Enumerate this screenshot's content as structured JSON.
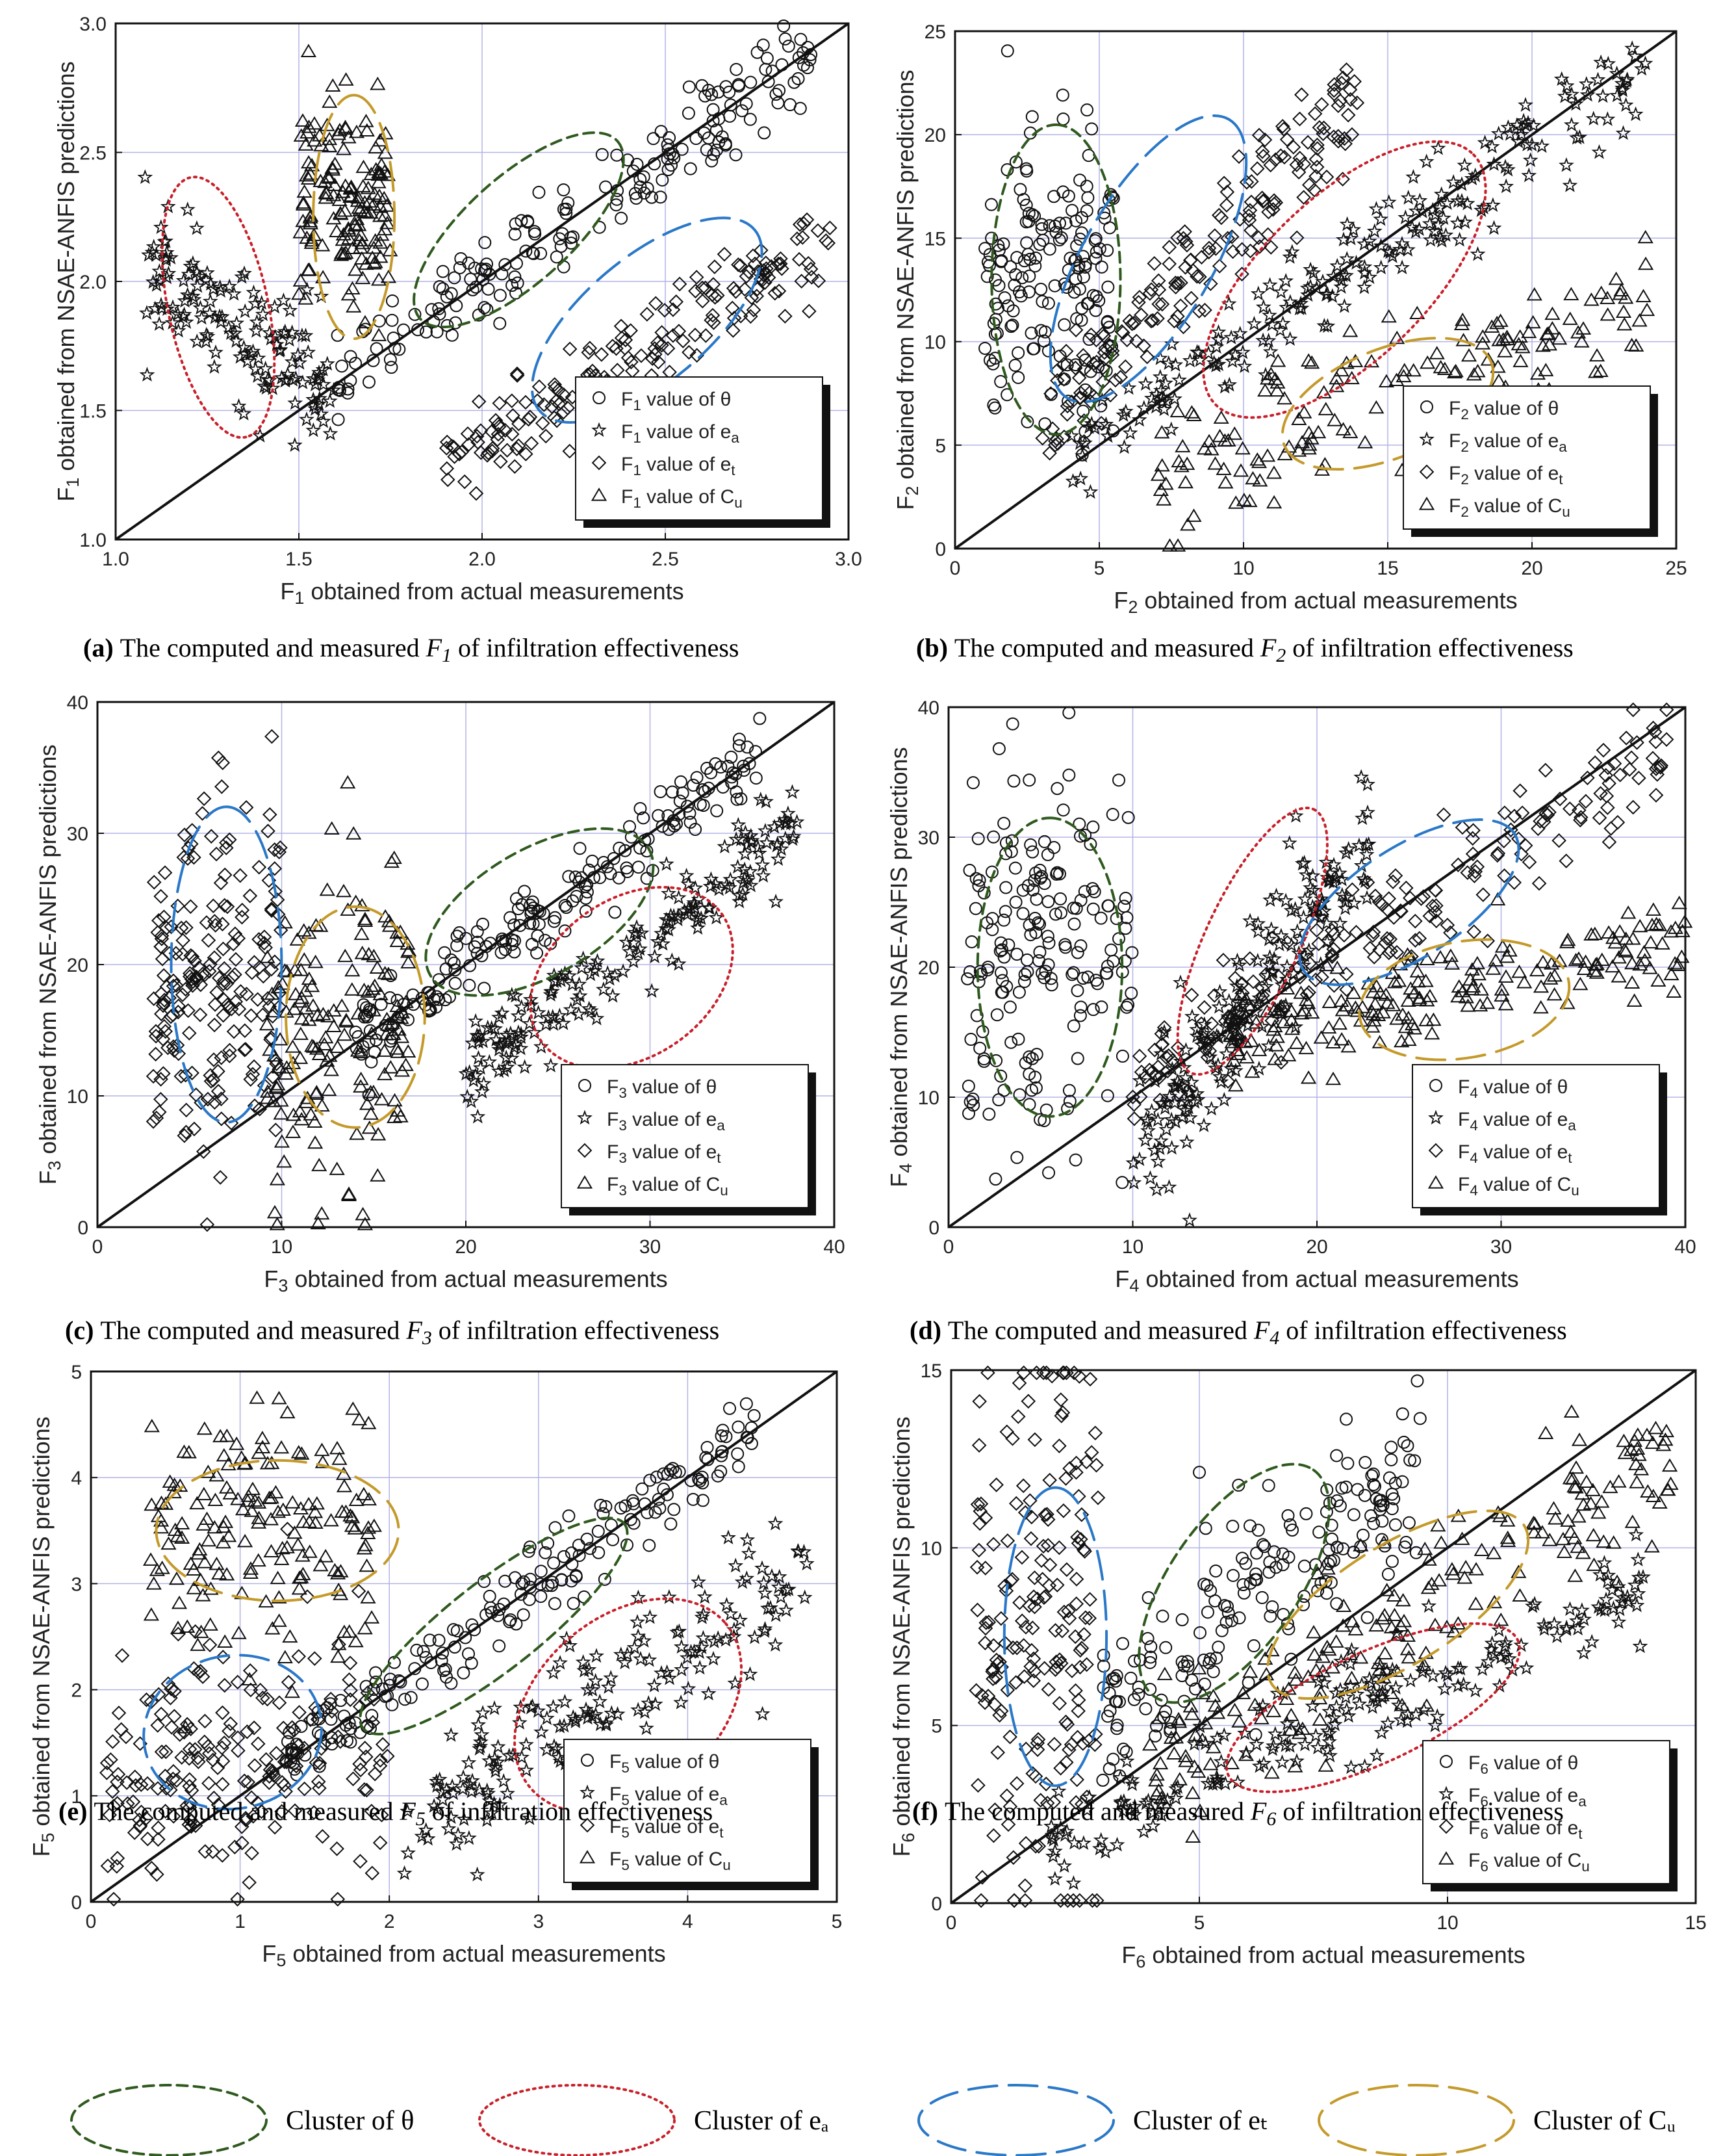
{
  "cluster_legend": [
    {
      "label": "Cluster of θ",
      "color": "#2f5a1e",
      "style": "short-dash"
    },
    {
      "label": "Cluster of eₐ",
      "color": "#c8202a",
      "style": "dotted"
    },
    {
      "label": "Cluster of eₜ",
      "color": "#2a78c8",
      "style": "long-dash"
    },
    {
      "label": "Cluster of Cᵤ",
      "color": "#c49a2a",
      "style": "long-dash"
    }
  ],
  "chart_data": [
    {
      "id": "a",
      "type": "scatter",
      "caption_letter": "(a)",
      "caption_text": "The computed and measured F1 of infiltration effectiveness",
      "xlabel": "F1 obtained from actual measurements",
      "ylabel": "F1 obtained from NSAE-ANFIS predictions",
      "xlim": [
        1.0,
        3.0
      ],
      "ylim": [
        1.0,
        3.0
      ],
      "xticks": [
        "1.0",
        "1.5",
        "2.0",
        "2.5",
        "3.0"
      ],
      "yticks": [
        "1.0",
        "1.5",
        "2.0",
        "2.5",
        "3.0"
      ],
      "legend": [
        "F1 value of θ",
        "F1 value of ea",
        "F1 value of et",
        "F1 value of Cu"
      ],
      "clusters": [
        {
          "type": "theta",
          "cx": 2.1,
          "cy": 2.2,
          "rx": 0.85,
          "ry": 0.17,
          "angle_deg": 42
        },
        {
          "type": "ea",
          "cx": 1.28,
          "cy": 1.9,
          "rx": 0.85,
          "ry": 0.16,
          "angle_deg": -78
        },
        {
          "type": "et",
          "cx": 2.45,
          "cy": 1.85,
          "rx": 0.9,
          "ry": 0.2,
          "angle_deg": 40
        },
        {
          "type": "cu",
          "cx": 1.65,
          "cy": 2.25,
          "rx": 0.78,
          "ry": 0.13,
          "angle_deg": 90
        }
      ],
      "series": [
        {
          "name": "theta",
          "count": 190,
          "x_range": [
            1.6,
            2.9
          ],
          "trend": [
            1.0,
            0.0
          ],
          "spread": 0.25
        },
        {
          "name": "ea",
          "count": 150,
          "x_range": [
            1.08,
            1.6
          ],
          "trend": [
            -1.0,
            3.15
          ],
          "spread": 0.35
        },
        {
          "name": "et",
          "count": 190,
          "x_range": [
            1.9,
            2.95
          ],
          "trend": [
            0.85,
            -0.35
          ],
          "spread": 0.25
        },
        {
          "name": "cu",
          "count": 150,
          "x_range": [
            1.5,
            1.75
          ],
          "trend": [
            0.0,
            2.3
          ],
          "spread": 0.55
        }
      ]
    },
    {
      "id": "b",
      "type": "scatter",
      "caption_letter": "(b)",
      "caption_text": "The computed and measured F2 of infiltration effectiveness",
      "xlabel": "F2 obtained from actual measurements",
      "ylabel": "F2 obtained from NSAE-ANFIS predictions",
      "xlim": [
        0,
        25
      ],
      "ylim": [
        0,
        25
      ],
      "xticks": [
        "0",
        "5",
        "10",
        "15",
        "20",
        "25"
      ],
      "yticks": [
        "0",
        "5",
        "10",
        "15",
        "20",
        "25"
      ],
      "legend": [
        "F2 value of θ",
        "F2 value of ea",
        "F2 value of et",
        "F2 value of Cu"
      ],
      "clusters": [
        {
          "type": "theta",
          "cx": 3.5,
          "cy": 13,
          "rx": 12.5,
          "ry": 2.6,
          "angle_deg": 90
        },
        {
          "type": "ea",
          "cx": 13.5,
          "cy": 13,
          "rx": 14.5,
          "ry": 3.3,
          "angle_deg": 44
        },
        {
          "type": "et",
          "cx": 6.7,
          "cy": 14,
          "rx": 13,
          "ry": 2.6,
          "angle_deg": 60
        },
        {
          "type": "cu",
          "cx": 15,
          "cy": 7,
          "rx": 9,
          "ry": 2.2,
          "angle_deg": 22
        }
      ],
      "series": [
        {
          "name": "theta",
          "count": 170,
          "x_range": [
            1,
            5.5
          ],
          "trend": [
            0.0,
            13
          ],
          "spread": 10
        },
        {
          "name": "ea",
          "count": 220,
          "x_range": [
            4,
            24
          ],
          "trend": [
            0.95,
            0.5
          ],
          "spread": 3.5
        },
        {
          "name": "et",
          "count": 190,
          "x_range": [
            3,
            14
          ],
          "trend": [
            1.45,
            1.5
          ],
          "spread": 4
        },
        {
          "name": "cu",
          "count": 170,
          "x_range": [
            7,
            24
          ],
          "trend": [
            0.45,
            0.5
          ],
          "spread": 5
        }
      ]
    },
    {
      "id": "c",
      "type": "scatter",
      "caption_letter": "(c)",
      "caption_text": "The computed and measured F3 of infiltration effectiveness",
      "xlabel": "F3 obtained from actual measurements",
      "ylabel": "F3 obtained from NSAE-ANFIS predictions",
      "xlim": [
        0,
        40
      ],
      "ylim": [
        0,
        40
      ],
      "xticks": [
        "0",
        "10",
        "20",
        "30",
        "40"
      ],
      "yticks": [
        "0",
        "10",
        "20",
        "30",
        "40"
      ],
      "legend": [
        "F3 value of θ",
        "F3 value of ea",
        "F3 value of et",
        "F3 value of Cu"
      ],
      "clusters": [
        {
          "type": "theta",
          "cx": 24,
          "cy": 24,
          "rx": 16,
          "ry": 4,
          "angle_deg": 30
        },
        {
          "type": "ea",
          "cx": 29,
          "cy": 19,
          "rx": 14,
          "ry": 5,
          "angle_deg": 35
        },
        {
          "type": "et",
          "cx": 7,
          "cy": 20,
          "rx": 20,
          "ry": 3.5,
          "angle_deg": 90
        },
        {
          "type": "cu",
          "cx": 14,
          "cy": 16,
          "rx": 14,
          "ry": 4.4,
          "angle_deg": 90
        }
      ],
      "series": [
        {
          "name": "theta",
          "count": 190,
          "x_range": [
            14,
            36
          ],
          "trend": [
            1.0,
            0.0
          ],
          "spread": 4
        },
        {
          "name": "ea",
          "count": 190,
          "x_range": [
            20,
            38
          ],
          "trend": [
            1.0,
            -8
          ],
          "spread": 5
        },
        {
          "name": "et",
          "count": 210,
          "x_range": [
            3,
            10
          ],
          "trend": [
            0.5,
            15
          ],
          "spread": 20
        },
        {
          "name": "cu",
          "count": 170,
          "x_range": [
            9,
            17
          ],
          "trend": [
            0.3,
            10
          ],
          "spread": 18
        }
      ]
    },
    {
      "id": "d",
      "type": "scatter",
      "caption_letter": "(d)",
      "caption_text": "The computed and measured F4 of infiltration effectiveness",
      "xlabel": "F4 obtained from actual measurements",
      "ylabel": "F4 obtained from NSAE-ANFIS predictions",
      "xlim": [
        0,
        40
      ],
      "ylim": [
        0,
        40
      ],
      "xticks": [
        "0",
        "10",
        "20",
        "30",
        "40"
      ],
      "yticks": [
        "0",
        "10",
        "20",
        "30",
        "40"
      ],
      "legend": [
        "F4 value of θ",
        "F4 value of ea",
        "F4 value of et",
        "F4 value of Cu"
      ],
      "clusters": [
        {
          "type": "theta",
          "cx": 5.5,
          "cy": 20,
          "rx": 19,
          "ry": 4.6,
          "angle_deg": 90
        },
        {
          "type": "ea",
          "cx": 16.5,
          "cy": 22,
          "rx": 18.5,
          "ry": 3,
          "angle_deg": 65
        },
        {
          "type": "et",
          "cx": 25,
          "cy": 25,
          "rx": 16,
          "ry": 3.5,
          "angle_deg": 33
        },
        {
          "type": "cu",
          "cx": 28,
          "cy": 17.5,
          "rx": 13.5,
          "ry": 3.7,
          "angle_deg": 10
        }
      ],
      "series": [
        {
          "name": "theta",
          "count": 190,
          "x_range": [
            1,
            10
          ],
          "trend": [
            0.0,
            22
          ],
          "spread": 20
        },
        {
          "name": "ea",
          "count": 190,
          "x_range": [
            10,
            23
          ],
          "trend": [
            2.0,
            -15
          ],
          "spread": 9
        },
        {
          "name": "et",
          "count": 200,
          "x_range": [
            10,
            39
          ],
          "trend": [
            0.9,
            2
          ],
          "spread": 6
        },
        {
          "name": "cu",
          "count": 200,
          "x_range": [
            15,
            40
          ],
          "trend": [
            0.3,
            10
          ],
          "spread": 5
        }
      ]
    },
    {
      "id": "e",
      "type": "scatter",
      "caption_letter": "(e)",
      "caption_text": "The computed and measured F5 of infiltration effectiveness",
      "xlabel": "F5 obtained from actual measurements",
      "ylabel": "F5 obtained from NSAE-ANFIS predictions",
      "xlim": [
        0,
        5
      ],
      "ylim": [
        0,
        5
      ],
      "xticks": [
        "0",
        "1",
        "2",
        "3",
        "4",
        "5"
      ],
      "yticks": [
        "0",
        "1",
        "2",
        "3",
        "4",
        "5"
      ],
      "legend": [
        "F5 value of θ",
        "F5 value of ea",
        "F5 value of et",
        "F5 value of Cu"
      ],
      "clusters": [
        {
          "type": "theta",
          "cx": 2.7,
          "cy": 2.6,
          "rx": 2.6,
          "ry": 0.35,
          "angle_deg": 38
        },
        {
          "type": "ea",
          "cx": 3.6,
          "cy": 1.85,
          "rx": 2.0,
          "ry": 0.7,
          "angle_deg": 40
        },
        {
          "type": "et",
          "cx": 0.95,
          "cy": 1.6,
          "rx": 1.2,
          "ry": 0.7,
          "angle_deg": -80
        },
        {
          "type": "cu",
          "cx": 1.25,
          "cy": 3.5,
          "rx": 1.1,
          "ry": 0.95,
          "angle_deg": 90
        }
      ],
      "series": [
        {
          "name": "theta",
          "count": 190,
          "x_range": [
            1.3,
            4.5
          ],
          "trend": [
            1.0,
            0.0
          ],
          "spread": 0.5
        },
        {
          "name": "ea",
          "count": 190,
          "x_range": [
            2.1,
            4.8
          ],
          "trend": [
            0.9,
            -1.2
          ],
          "spread": 1.0
        },
        {
          "name": "et",
          "count": 210,
          "x_range": [
            0.1,
            2.0
          ],
          "trend": [
            0.3,
            1.0
          ],
          "spread": 1.6
        },
        {
          "name": "cu",
          "count": 170,
          "x_range": [
            0.4,
            1.9
          ],
          "trend": [
            0.0,
            3.5
          ],
          "spread": 1.7
        }
      ]
    },
    {
      "id": "f",
      "type": "scatter",
      "caption_letter": "(f)",
      "caption_text": "The computed and measured F6 of infiltration effectiveness",
      "xlabel": "F6 obtained from actual measurements",
      "ylabel": "F6 obtained from NSAE-ANFIS predictions",
      "xlim": [
        0,
        15
      ],
      "ylim": [
        0,
        15
      ],
      "xticks": [
        "0",
        "5",
        "10",
        "15"
      ],
      "yticks": [
        "0",
        "5",
        "10",
        "15"
      ],
      "legend": [
        "F6 value of θ",
        "F6 value of ea",
        "F6 value of et",
        "F6 value of Cu"
      ],
      "clusters": [
        {
          "type": "theta",
          "cx": 5.7,
          "cy": 9,
          "rx": 6.5,
          "ry": 1.5,
          "angle_deg": 55
        },
        {
          "type": "ea",
          "cx": 8.5,
          "cy": 5.5,
          "rx": 7.5,
          "ry": 1.3,
          "angle_deg": 25
        },
        {
          "type": "et",
          "cx": 2.1,
          "cy": 7.5,
          "rx": 7,
          "ry": 1.2,
          "angle_deg": 90
        },
        {
          "type": "cu",
          "cx": 9,
          "cy": 8.4,
          "rx": 7,
          "ry": 1.4,
          "angle_deg": 32
        }
      ],
      "series": [
        {
          "name": "theta",
          "count": 190,
          "x_range": [
            3,
            9.5
          ],
          "trend": [
            1.0,
            2.5
          ],
          "spread": 4
        },
        {
          "name": "ea",
          "count": 200,
          "x_range": [
            2,
            14
          ],
          "trend": [
            0.6,
            0.5
          ],
          "spread": 2
        },
        {
          "name": "et",
          "count": 200,
          "x_range": [
            0.5,
            3
          ],
          "trend": [
            0.0,
            7.5
          ],
          "spread": 12
        },
        {
          "name": "cu",
          "count": 200,
          "x_range": [
            4,
            14.5
          ],
          "trend": [
            0.85,
            0.3
          ],
          "spread": 3
        }
      ]
    }
  ]
}
